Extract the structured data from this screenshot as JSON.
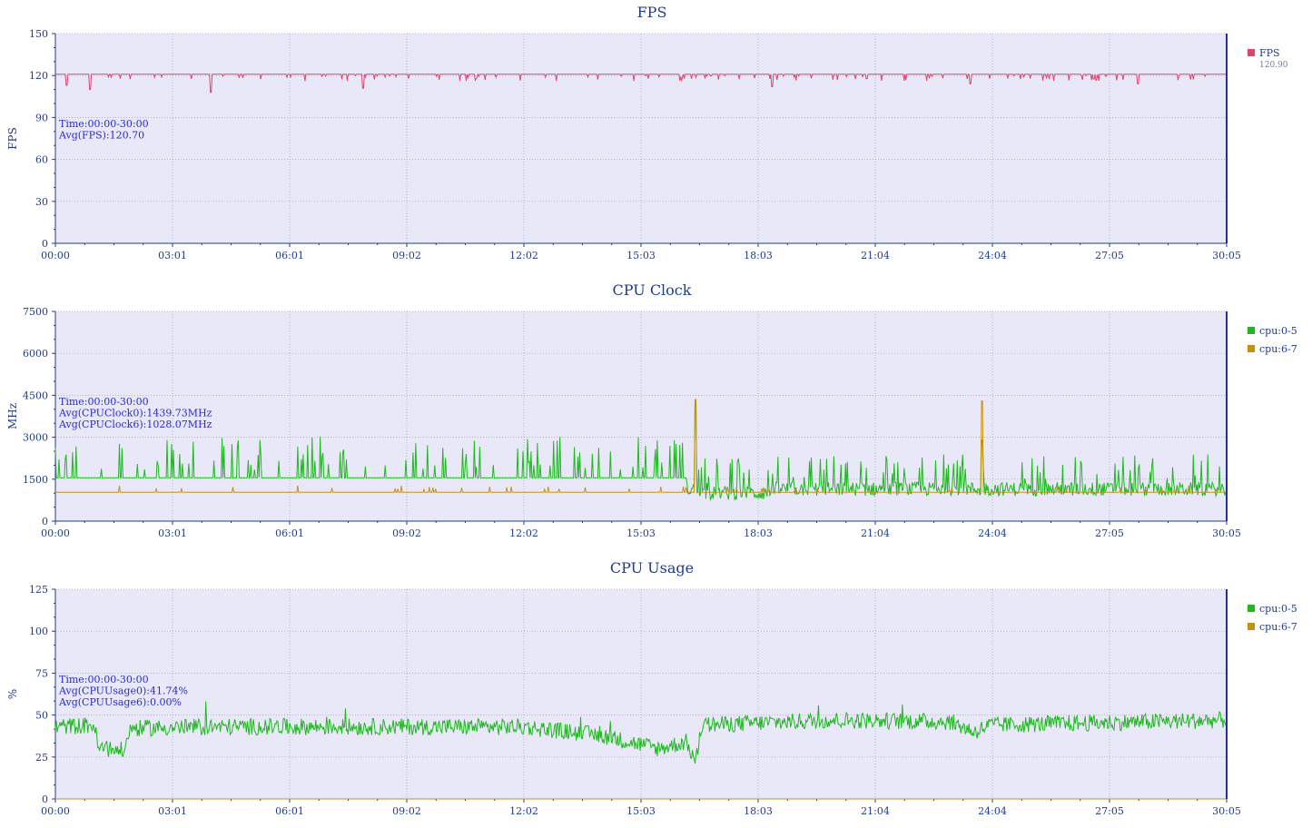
{
  "colors": {
    "plot_bg": "#e8e8f8",
    "axis_text": "#1f3b8c",
    "grid": "#9aa3c4",
    "right_border": "#1f2f9c",
    "fps": "#e0446a",
    "cpu05": "#1fb81f",
    "cpu67": "#c8900a"
  },
  "x_ticks": [
    "00:00",
    "03:01",
    "06:01",
    "09:02",
    "12:02",
    "15:03",
    "18:03",
    "21:04",
    "24:04",
    "27:05",
    "30:05"
  ],
  "chart_data": [
    {
      "type": "line",
      "title": "FPS",
      "ylabel": "FPS",
      "xlabel": "",
      "ylim": [
        0,
        150
      ],
      "yticks": [
        "0",
        "30",
        "60",
        "90",
        "120",
        "150"
      ],
      "x_range": [
        "00:00",
        "30:05"
      ],
      "grid": true,
      "legend_position": "right",
      "info": [
        "Time:00:00-30:00",
        "Avg(FPS):120.70"
      ],
      "series": [
        {
          "name": "FPS",
          "legend_value": "120.90",
          "color": "#e0446a",
          "baseline": 121,
          "noise": 0,
          "dips": [
            [
              0.3,
              113
            ],
            [
              0.9,
              110
            ],
            [
              4.0,
              108
            ],
            [
              7.9,
              111
            ],
            [
              18.4,
              112
            ],
            [
              23.5,
              114
            ],
            [
              27.8,
              114
            ]
          ]
        }
      ]
    },
    {
      "type": "line",
      "title": "CPU Clock",
      "ylabel": "MHz",
      "xlabel": "",
      "ylim": [
        0,
        7500
      ],
      "yticks": [
        "0",
        "1500",
        "3000",
        "4500",
        "6000",
        "7500"
      ],
      "x_range": [
        "00:00",
        "30:05"
      ],
      "grid": true,
      "legend_position": "right",
      "info": [
        "Time:00:00-30:00",
        "Avg(CPUClock0):1439.73MHz",
        "Avg(CPUClock6):1028.07MHz"
      ],
      "series": [
        {
          "name": "cpu:0-5",
          "color": "#1fb81f",
          "segments": [
            [
              0,
              16.2,
              1550
            ],
            [
              16.6,
              18.5,
              950
            ],
            [
              18.5,
              30.1,
              1100
            ]
          ],
          "spikes": [
            [
              16.45,
              4350
            ],
            [
              23.8,
              2900
            ]
          ]
        },
        {
          "name": "cpu:6-7",
          "color": "#c8900a",
          "segments": [
            [
              0,
              16.4,
              1030
            ],
            [
              16.6,
              30.1,
              1030
            ]
          ],
          "spikes": [
            [
              16.45,
              4350
            ],
            [
              23.8,
              4300
            ]
          ]
        }
      ]
    },
    {
      "type": "line",
      "title": "CPU Usage",
      "ylabel": "%",
      "xlabel": "",
      "ylim": [
        0,
        125
      ],
      "yticks": [
        "0",
        "25",
        "50",
        "75",
        "100",
        "125"
      ],
      "x_range": [
        "00:00",
        "30:05"
      ],
      "grid": true,
      "legend_position": "right",
      "info": [
        "Time:00:00-30:00",
        "Avg(CPUUsage0):41.74%",
        "Avg(CPUUsage6):0.00%"
      ],
      "series": [
        {
          "name": "cpu:0-5",
          "color": "#1fb81f",
          "profile": [
            [
              0,
              43
            ],
            [
              1.0,
              44
            ],
            [
              1.1,
              30
            ],
            [
              1.8,
              29
            ],
            [
              1.9,
              42
            ],
            [
              4.0,
              43
            ],
            [
              8.0,
              43
            ],
            [
              12.0,
              43
            ],
            [
              14.0,
              38
            ],
            [
              15.5,
              30
            ],
            [
              16.2,
              34
            ],
            [
              16.45,
              22
            ],
            [
              16.6,
              44
            ],
            [
              20.0,
              47
            ],
            [
              23.0,
              46
            ],
            [
              23.6,
              40
            ],
            [
              24.0,
              44
            ],
            [
              30.1,
              47
            ]
          ]
        },
        {
          "name": "cpu:6-7",
          "color": "#c8900a",
          "constant": 0
        }
      ]
    }
  ]
}
